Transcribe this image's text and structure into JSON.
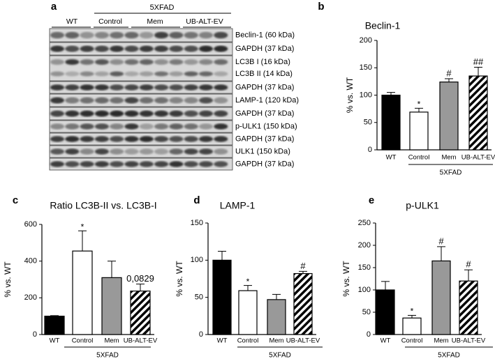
{
  "blot": {
    "panel_label": "a",
    "group": "5XFAD",
    "lanes": [
      "WT",
      "Control",
      "Mem",
      "UB-ALT-EV"
    ],
    "rows": [
      [
        "Beclin-1 (60 kDa)"
      ],
      [
        "GAPDH (37 kDa)"
      ],
      [
        "LC3B I (16 kDa)",
        "LC3B II (14 kDa)"
      ],
      [
        "GAPDH (37 kDa)"
      ],
      [
        "LAMP-1 (120 kDa)"
      ],
      [
        "GAPDH (37 kDa)"
      ],
      [
        "p-ULK1 (150 kDa)"
      ],
      [
        "GAPDH (37 kDa)"
      ],
      [
        "ULK1 (150 kDa)"
      ],
      [
        "GAPDH (37 kDa)"
      ]
    ]
  },
  "chart_data": [
    {
      "type": "bar",
      "panel_label": "b",
      "title": "Beclin-1",
      "ylabel": "% vs. WT",
      "group_label": "5XFAD",
      "categories": [
        "WT",
        "Control",
        "Mem",
        "UB-ALT-EV"
      ],
      "values": [
        100,
        69,
        124,
        135
      ],
      "errors": [
        5,
        7,
        6,
        16
      ],
      "annotations": [
        null,
        "*",
        "#",
        "##"
      ],
      "colors": [
        "#000000",
        "#ffffff",
        "#999999",
        "#ffffff"
      ],
      "hatched": [
        false,
        false,
        false,
        true
      ],
      "ylim": [
        0,
        200
      ],
      "yticks": [
        0,
        50,
        100,
        150,
        200
      ]
    },
    {
      "type": "bar",
      "panel_label": "c",
      "title": "Ratio LC3B-II vs. LC3B-I",
      "ylabel": "% vs. WT",
      "group_label": "5XFAD",
      "categories": [
        "WT",
        "Control",
        "Mem",
        "UB-ALT-EV"
      ],
      "values": [
        100,
        455,
        310,
        237
      ],
      "errors": [
        3,
        110,
        90,
        38
      ],
      "annotations": [
        null,
        "*",
        null,
        "0,0829"
      ],
      "colors": [
        "#000000",
        "#ffffff",
        "#999999",
        "#ffffff"
      ],
      "hatched": [
        false,
        false,
        false,
        true
      ],
      "ylim": [
        0,
        600
      ],
      "yticks": [
        0,
        200,
        400,
        600
      ]
    },
    {
      "type": "bar",
      "panel_label": "d",
      "title": "LAMP-1",
      "ylabel": "% vs. WT",
      "group_label": "5XFAD",
      "categories": [
        "WT",
        "Control",
        "Mem",
        "UB-ALT-EV"
      ],
      "values": [
        100,
        59,
        47,
        82
      ],
      "errors": [
        12,
        7,
        7,
        3
      ],
      "annotations": [
        null,
        "*",
        null,
        "#"
      ],
      "colors": [
        "#000000",
        "#ffffff",
        "#999999",
        "#ffffff"
      ],
      "hatched": [
        false,
        false,
        false,
        true
      ],
      "ylim": [
        0,
        150
      ],
      "yticks": [
        0,
        50,
        100,
        150
      ]
    },
    {
      "type": "bar",
      "panel_label": "e",
      "title": "p-ULK1",
      "ylabel": "% vs. WT",
      "group_label": "5XFAD",
      "categories": [
        "WT",
        "Control",
        "Mem",
        "UB-ALT-EV"
      ],
      "values": [
        100,
        37,
        165,
        120
      ],
      "errors": [
        19,
        6,
        32,
        25
      ],
      "annotations": [
        null,
        "*",
        "#",
        "#"
      ],
      "colors": [
        "#000000",
        "#ffffff",
        "#999999",
        "#ffffff"
      ],
      "hatched": [
        false,
        false,
        false,
        true
      ],
      "ylim": [
        0,
        250
      ],
      "yticks": [
        0,
        50,
        100,
        150,
        200,
        250
      ]
    }
  ]
}
